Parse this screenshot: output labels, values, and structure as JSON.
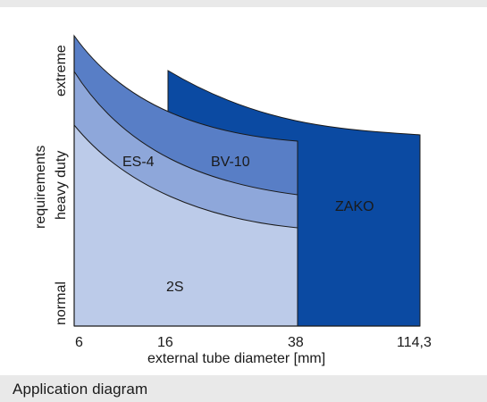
{
  "caption": "Application diagram",
  "chart_data": {
    "type": "area",
    "title": "",
    "xlabel": "external tube diameter [mm]",
    "ylabel": "requirements",
    "x_tick_labels": [
      "6",
      "16",
      "38",
      "114,3"
    ],
    "y_tick_labels": [
      "normal",
      "heavy duty",
      "extreme"
    ],
    "series": [
      {
        "name": "2S",
        "color": "#bccbe9",
        "x_range": [
          "6",
          "38"
        ]
      },
      {
        "name": "ES-4",
        "color": "#8ea7da",
        "x_range": [
          "6",
          "38"
        ]
      },
      {
        "name": "BV-10",
        "color": "#587ec6",
        "x_range": [
          "6",
          "38"
        ]
      },
      {
        "name": "ZAKO",
        "color": "#0b4aa2",
        "x_range": [
          "16",
          "114,3"
        ]
      }
    ],
    "background_color": "#ffffff"
  }
}
